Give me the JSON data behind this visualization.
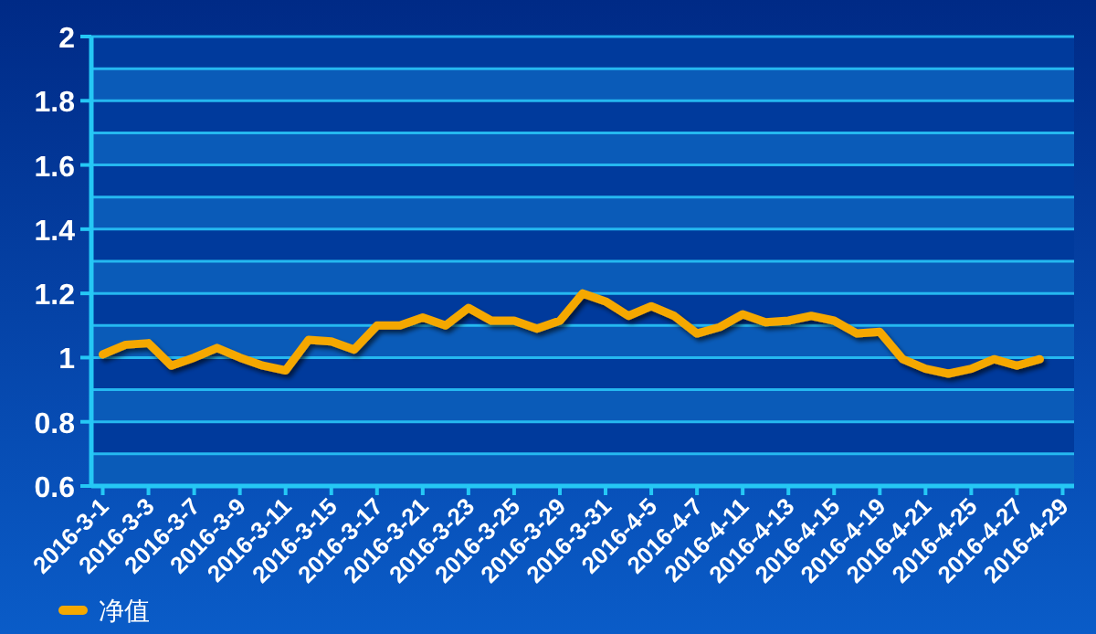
{
  "chart_data": {
    "type": "line",
    "categories": [
      "2016-3-1",
      null,
      "2016-3-3",
      null,
      "2016-3-7",
      null,
      "2016-3-9",
      null,
      "2016-3-11",
      null,
      "2016-3-15",
      null,
      "2016-3-17",
      null,
      "2016-3-21",
      null,
      "2016-3-23",
      null,
      "2016-3-25",
      null,
      "2016-3-29",
      null,
      "2016-3-31",
      null,
      "2016-4-5",
      null,
      "2016-4-7",
      null,
      "2016-4-11",
      null,
      "2016-4-13",
      null,
      "2016-4-15",
      null,
      "2016-4-19",
      null,
      "2016-4-21",
      null,
      "2016-4-25",
      null,
      "2016-4-27",
      null,
      "2016-4-29"
    ],
    "series": [
      {
        "name": "净值",
        "color": "#f5a800",
        "values": [
          1.01,
          1.04,
          1.045,
          0.975,
          1.0,
          1.03,
          1.0,
          0.975,
          0.96,
          1.055,
          1.05,
          1.025,
          1.1,
          1.1,
          1.125,
          1.1,
          1.155,
          1.115,
          1.115,
          1.09,
          1.115,
          1.2,
          1.175,
          1.13,
          1.16,
          1.13,
          1.075,
          1.095,
          1.135,
          1.11,
          1.115,
          1.13,
          1.115,
          1.075,
          1.08,
          0.995,
          0.965,
          0.95,
          0.965,
          0.995,
          0.975,
          0.995,
          null
        ]
      }
    ],
    "ylim": [
      0.6,
      2
    ],
    "yticks": [
      0.6,
      {
        "value": 0.7,
        "label": null
      },
      0.8,
      {
        "value": 0.9,
        "label": null
      },
      1,
      {
        "value": 1.1,
        "label": null
      },
      1.2,
      {
        "value": 1.3,
        "label": null
      },
      1.4,
      {
        "value": 1.5,
        "label": null
      },
      1.6,
      {
        "value": 1.7,
        "label": null
      },
      1.8,
      {
        "value": 1.9,
        "label": null
      },
      2
    ],
    "grid": "y",
    "legend": "bottom left",
    "marker": "none",
    "line_style": "solid"
  }
}
